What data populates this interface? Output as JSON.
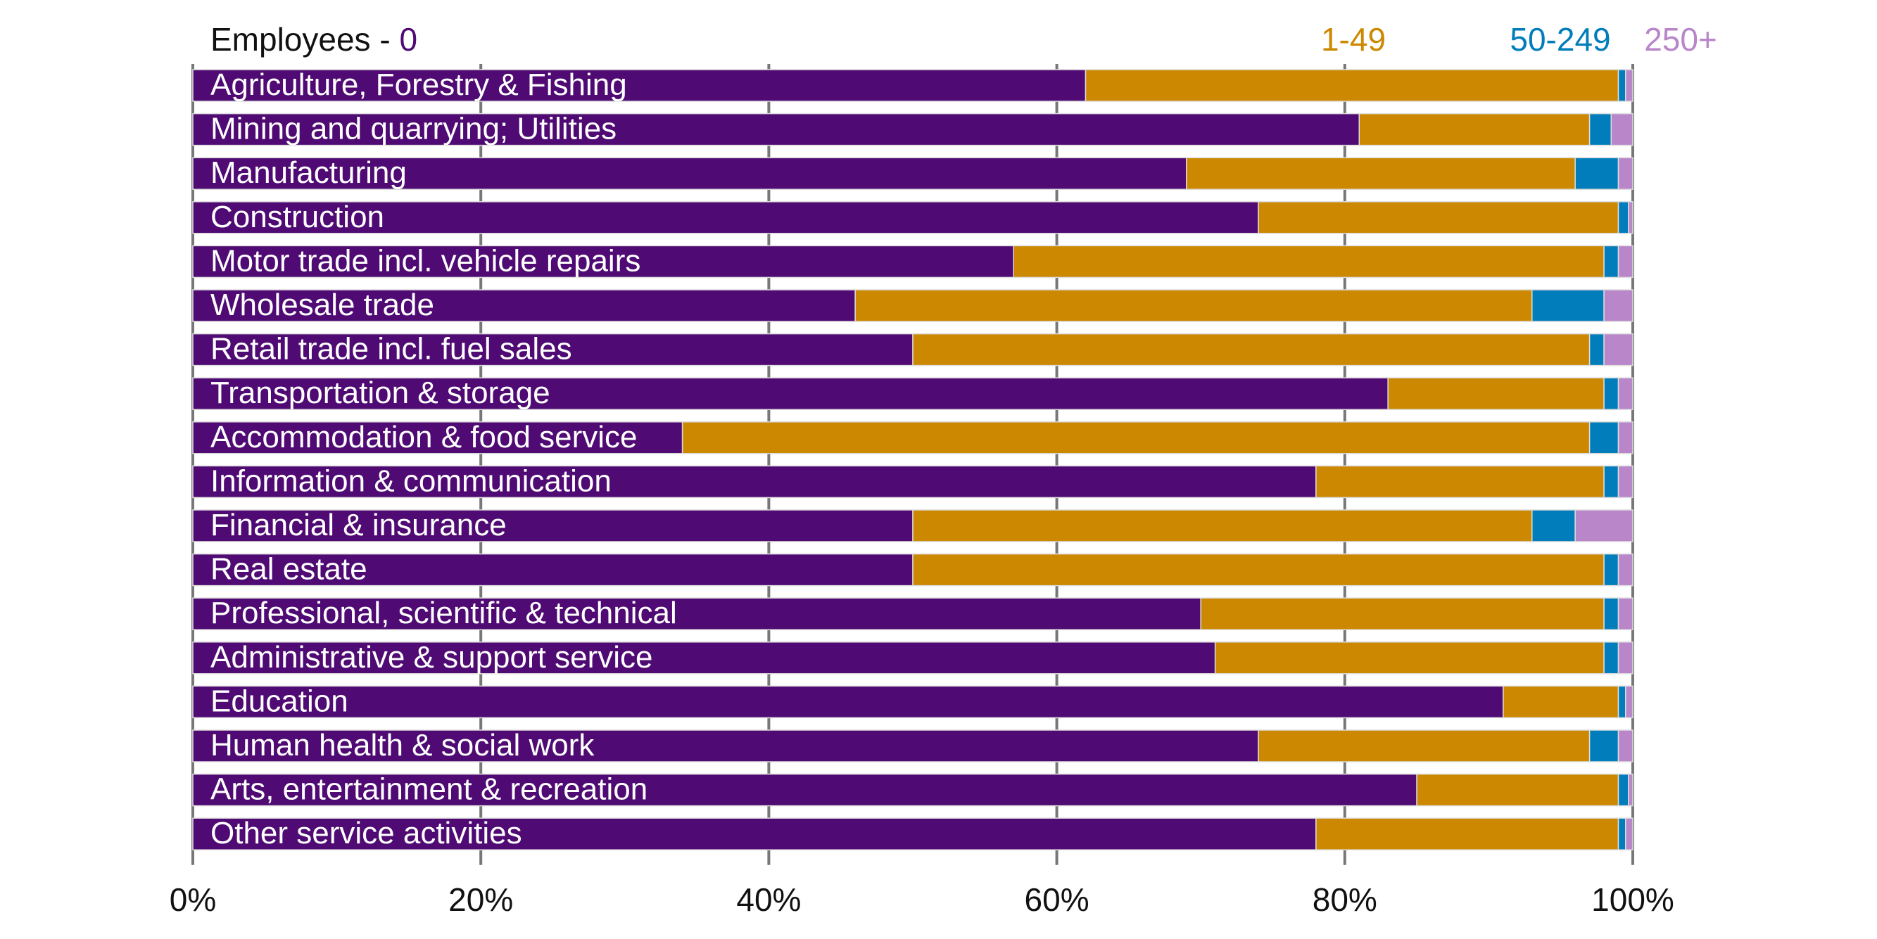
{
  "chart_data": {
    "type": "bar",
    "orientation": "horizontal",
    "stacked": true,
    "legend_placement": "top",
    "legend_prefix": "Employees - ",
    "xlim": [
      0,
      100
    ],
    "x_ticks": [
      "0%",
      "20%",
      "40%",
      "60%",
      "80%",
      "100%"
    ],
    "grid": true,
    "categories": [
      "Agriculture, Forestry & Fishing",
      "Mining and quarrying; Utilities",
      "Manufacturing",
      "Construction",
      "Motor trade incl. vehicle repairs",
      "Wholesale trade",
      "Retail trade incl. fuel sales",
      "Transportation & storage",
      "Accommodation & food service",
      "Information & communication",
      "Financial & insurance",
      "Real estate",
      "Professional, scientific & technical",
      "Administrative & support service",
      "Education",
      "Human health & social work",
      "Arts, entertainment & recreation",
      "Other service activities"
    ],
    "series": [
      {
        "name": "0",
        "color": "#4f0a73",
        "values": [
          62,
          81,
          69,
          74,
          57,
          46,
          50,
          83,
          34,
          78,
          50,
          50,
          70,
          71,
          91,
          74,
          85,
          78
        ]
      },
      {
        "name": "1-49",
        "color": "#cc8800",
        "values": [
          37,
          16,
          27,
          25,
          41,
          47,
          47,
          15,
          63,
          20,
          43,
          48,
          28,
          27,
          8,
          23,
          14,
          21
        ]
      },
      {
        "name": "50-249",
        "color": "#007dba",
        "values": [
          0.5,
          1.5,
          3,
          0.7,
          1,
          5,
          1,
          1,
          2,
          1,
          3,
          1,
          1,
          1,
          0.5,
          2,
          0.7,
          0.5
        ]
      },
      {
        "name": "250+",
        "color": "#b886c9",
        "values": [
          0.5,
          1.5,
          1,
          0.3,
          1,
          2,
          2,
          1,
          1,
          1,
          4,
          1,
          1,
          1,
          0.5,
          1,
          0.3,
          0.5
        ]
      }
    ]
  }
}
